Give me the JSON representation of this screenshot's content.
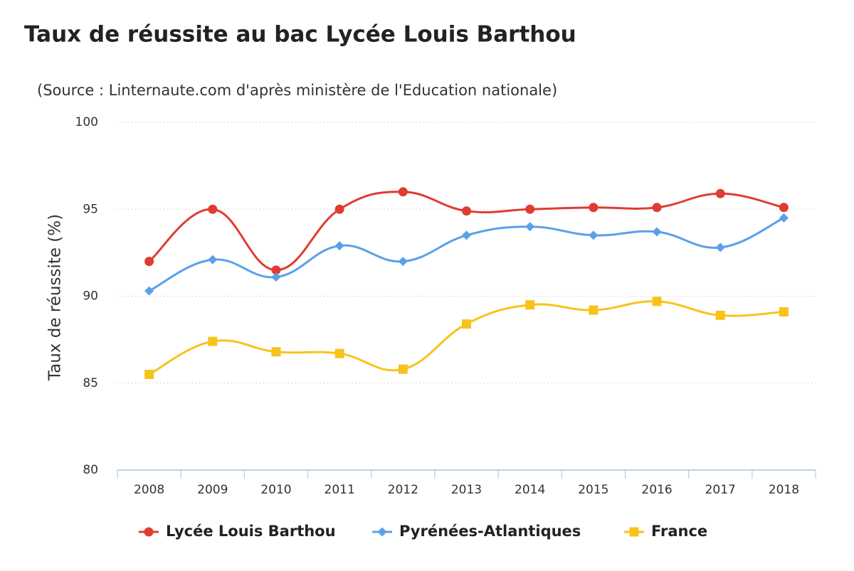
{
  "chart_data": {
    "type": "line",
    "title": "Taux de réussite au bac Lycée Louis Barthou",
    "subtitle": "(Source : Linternaute.com d'après ministère de l'Education nationale)",
    "y_label": "Taux de réussite (%)",
    "categories": [
      "2008",
      "2009",
      "2010",
      "2011",
      "2012",
      "2013",
      "2014",
      "2015",
      "2016",
      "2017",
      "2018"
    ],
    "series": [
      {
        "name": "Lycée Louis Barthou",
        "color": "#e03c31",
        "marker": "circle",
        "values": [
          92.0,
          95.0,
          91.5,
          95.0,
          96.0,
          94.9,
          95.0,
          95.1,
          95.1,
          95.9,
          95.1
        ]
      },
      {
        "name": "Pyrénées-Atlantiques",
        "color": "#5aa0ea",
        "marker": "diamond",
        "values": [
          90.3,
          92.1,
          91.1,
          92.9,
          92.0,
          93.5,
          94.0,
          93.5,
          93.7,
          92.8,
          94.5
        ]
      },
      {
        "name": "France",
        "color": "#f7c31b",
        "marker": "square",
        "values": [
          85.5,
          87.4,
          86.8,
          86.7,
          85.8,
          88.4,
          89.5,
          89.2,
          89.7,
          88.9,
          89.1
        ]
      }
    ],
    "ylim": [
      80,
      100
    ],
    "yticks": [
      80,
      85,
      90,
      95,
      100
    ],
    "grid": true,
    "legend": "bottom"
  }
}
